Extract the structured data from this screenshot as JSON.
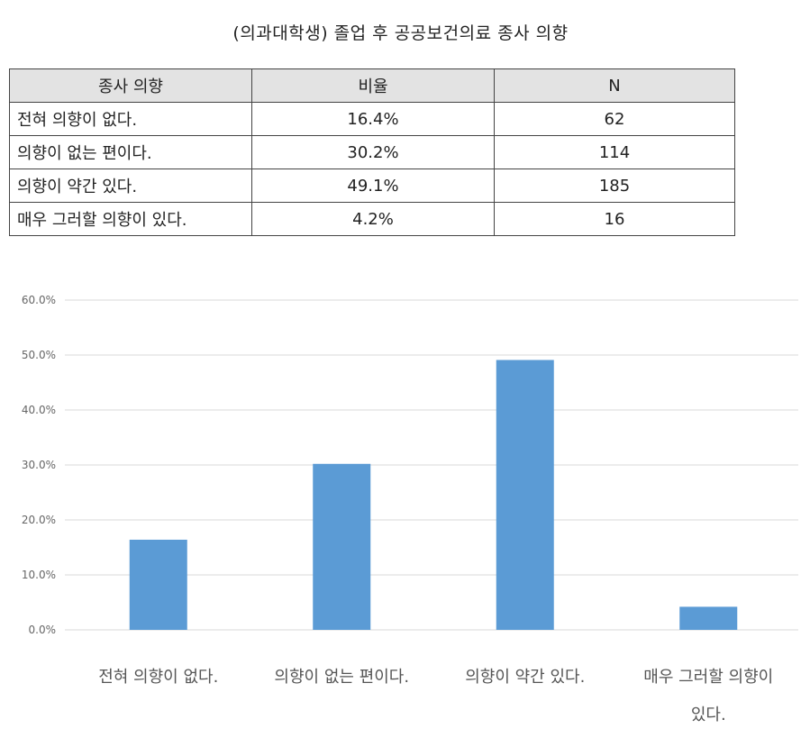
{
  "title": "(의과대학생) 졸업 후 공공보건의료 종사 의향",
  "table": {
    "headers": [
      "종사 의향",
      "비율",
      "N"
    ],
    "rows": [
      [
        "전혀 의향이 없다.",
        "16.4%",
        "62"
      ],
      [
        "의향이 없는 편이다.",
        "30.2%",
        "114"
      ],
      [
        "의향이 약간 있다.",
        "49.1%",
        "185"
      ],
      [
        "매우 그러할 의향이 있다.",
        "4.2%",
        "16"
      ]
    ]
  },
  "chart_data": {
    "type": "bar",
    "categories": [
      "전혀 의향이 없다.",
      "의향이 없는 편이다.",
      "의향이 약간 있다.",
      "매우 그러할 의향이 있다."
    ],
    "category_lines": [
      [
        "전혀 의향이 없다."
      ],
      [
        "의향이 없는 편이다."
      ],
      [
        "의향이 약간 있다."
      ],
      [
        "매우 그러할 의향이",
        "있다."
      ]
    ],
    "values": [
      16.4,
      30.2,
      49.1,
      4.2
    ],
    "ylim": [
      0,
      60
    ],
    "yticks": [
      "0.0%",
      "10.0%",
      "20.0%",
      "30.0%",
      "40.0%",
      "50.0%",
      "60.0%"
    ],
    "ytick_values": [
      0,
      10,
      20,
      30,
      40,
      50,
      60
    ],
    "grid": true,
    "legend": "none",
    "bar_color": "#5b9bd5",
    "grid_color": "#d9d9d9"
  }
}
